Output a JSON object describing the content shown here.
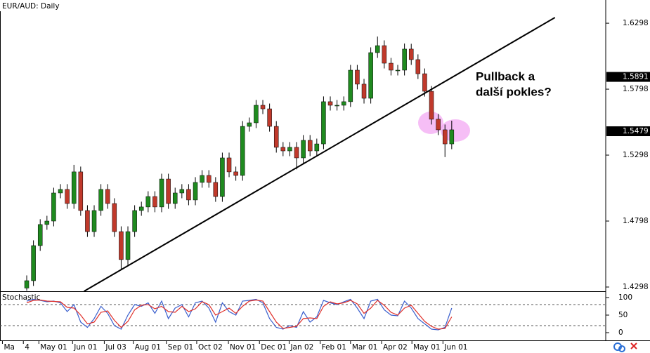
{
  "chart_data": [
    {
      "type": "candlestick",
      "title": "EUR/AUD: Daily",
      "xlim": [
        -3.96,
        85.83
      ],
      "xticks": [
        {
          "value": -3.6,
          "label": "Ma"
        },
        {
          "value": -0.5,
          "label": "4"
        },
        {
          "value": 1.8,
          "label": "May 01"
        },
        {
          "value": 6.8,
          "label": "Jun 01"
        },
        {
          "value": 11.5,
          "label": "Jul 03"
        },
        {
          "value": 15.8,
          "label": "Aug 01"
        },
        {
          "value": 20.7,
          "label": "Sep 01"
        },
        {
          "value": 25.2,
          "label": "Oct 02"
        },
        {
          "value": 29.9,
          "label": "Nov 01"
        },
        {
          "value": 34.5,
          "label": "Dec 01"
        },
        {
          "value": 38.9,
          "label": "Jan 02"
        },
        {
          "value": 43.5,
          "label": "Feb 01"
        },
        {
          "value": 48,
          "label": "Mar 01"
        },
        {
          "value": 52.6,
          "label": "Apr 02"
        },
        {
          "value": 57.1,
          "label": "May 01"
        },
        {
          "value": 61.7,
          "label": "Jun 01"
        }
      ],
      "ylim": [
        1.4266,
        1.6474
      ],
      "yticks": [
        1.6298,
        1.5798,
        1.5298,
        1.4798,
        1.4298
      ],
      "grid": false,
      "up_color": "#1f8a1f",
      "down_color": "#c0392b",
      "open": [
        1.429,
        1.4346,
        1.4612,
        1.4772,
        1.4798,
        1.5011,
        1.5038,
        1.4931,
        1.5171,
        1.4878,
        1.4718,
        1.4878,
        1.5038,
        1.4931,
        1.4718,
        1.4506,
        1.4718,
        1.4878,
        1.4905,
        1.4984,
        1.4905,
        1.5117,
        1.4931,
        1.5011,
        1.5038,
        1.4958,
        1.5091,
        1.5144,
        1.5091,
        1.4984,
        1.5277,
        1.5171,
        1.5144,
        1.5516,
        1.5543,
        1.5676,
        1.5649,
        1.5516,
        1.5357,
        1.533,
        1.5357,
        1.5277,
        1.541,
        1.533,
        1.5383,
        1.5703,
        1.5676,
        1.5676,
        1.5703,
        1.5942,
        1.5836,
        1.5729,
        1.6075,
        1.6128,
        1.5995,
        1.5942,
        1.5942,
        1.6102,
        1.6022,
        1.5915,
        1.5782,
        1.557,
        1.549,
        1.5383
      ],
      "high": [
        1.4386,
        1.4652,
        1.4812,
        1.4838,
        1.5051,
        1.5078,
        1.5078,
        1.5224,
        1.5211,
        1.4918,
        1.4918,
        1.5078,
        1.5078,
        1.4971,
        1.4758,
        1.4758,
        1.4918,
        1.4945,
        1.5024,
        1.5024,
        1.5157,
        1.5157,
        1.5051,
        1.5078,
        1.5078,
        1.5131,
        1.5184,
        1.5184,
        1.5131,
        1.5317,
        1.5317,
        1.5211,
        1.5556,
        1.5583,
        1.5716,
        1.5716,
        1.5689,
        1.5556,
        1.5397,
        1.5397,
        1.5397,
        1.545,
        1.545,
        1.5423,
        1.5743,
        1.5743,
        1.5716,
        1.5743,
        1.5982,
        1.5982,
        1.5876,
        1.6115,
        1.6197,
        1.6168,
        1.6035,
        1.5982,
        1.6144,
        1.6142,
        1.6062,
        1.5955,
        1.5822,
        1.561,
        1.553,
        1.5559
      ],
      "low": [
        1.427,
        1.4306,
        1.4572,
        1.4732,
        1.4758,
        1.4971,
        1.4891,
        1.4891,
        1.4838,
        1.4678,
        1.4678,
        1.4838,
        1.4891,
        1.4678,
        1.4426,
        1.4466,
        1.4678,
        1.4838,
        1.4865,
        1.4865,
        1.4865,
        1.4891,
        1.4891,
        1.4971,
        1.4918,
        1.4918,
        1.5051,
        1.5051,
        1.4944,
        1.4944,
        1.5131,
        1.5104,
        1.5104,
        1.5476,
        1.5503,
        1.5609,
        1.5476,
        1.5317,
        1.529,
        1.529,
        1.519,
        1.5237,
        1.529,
        1.529,
        1.5343,
        1.5636,
        1.5636,
        1.5636,
        1.5663,
        1.5796,
        1.5689,
        1.5689,
        1.6035,
        1.5955,
        1.5902,
        1.5902,
        1.5902,
        1.5982,
        1.5875,
        1.5742,
        1.553,
        1.545,
        1.5283,
        1.5343
      ],
      "close": [
        1.4346,
        1.4612,
        1.4772,
        1.4798,
        1.5011,
        1.5038,
        1.4931,
        1.5171,
        1.4878,
        1.4718,
        1.4878,
        1.5038,
        1.4931,
        1.4718,
        1.4506,
        1.4718,
        1.4878,
        1.4905,
        1.4984,
        1.4905,
        1.5117,
        1.4931,
        1.5011,
        1.5038,
        1.4958,
        1.5091,
        1.5144,
        1.5091,
        1.4984,
        1.5277,
        1.5171,
        1.5144,
        1.5516,
        1.5543,
        1.5676,
        1.5649,
        1.5516,
        1.5357,
        1.533,
        1.5357,
        1.5277,
        1.541,
        1.533,
        1.5383,
        1.5703,
        1.5676,
        1.5676,
        1.5703,
        1.5942,
        1.5836,
        1.5729,
        1.6075,
        1.6128,
        1.5995,
        1.5942,
        1.5942,
        1.6102,
        1.6022,
        1.5915,
        1.5782,
        1.557,
        1.549,
        1.5383,
        1.549
      ],
      "trendline": {
        "x": [
          8.5,
          78.3
        ],
        "y": [
          1.4266,
          1.6341
        ]
      },
      "price_markers": [
        1.5891,
        1.5479
      ],
      "annotation": [
        "Pullback a",
        "další pokles?"
      ]
    },
    {
      "type": "line",
      "title": "Stochastic",
      "xlim": [
        -3.96,
        85.83
      ],
      "ylim": [
        -22,
        116
      ],
      "yticks": [
        100,
        50,
        0
      ],
      "levels": [
        80,
        20
      ],
      "series": [
        {
          "color": "#3a5fcd",
          "values": [
            90,
            95,
            92,
            88,
            90,
            85,
            60,
            80,
            30,
            15,
            40,
            75,
            55,
            20,
            10,
            50,
            80,
            75,
            85,
            55,
            90,
            40,
            70,
            80,
            45,
            85,
            90,
            70,
            30,
            85,
            60,
            50,
            90,
            92,
            95,
            85,
            40,
            15,
            10,
            20,
            15,
            60,
            30,
            45,
            92,
            85,
            80,
            88,
            95,
            70,
            40,
            90,
            95,
            65,
            50,
            48,
            90,
            70,
            40,
            25,
            10,
            8,
            15,
            70
          ]
        },
        {
          "color": "#e0302a",
          "values": [
            85,
            92,
            93,
            90,
            89,
            88,
            72,
            70,
            50,
            25,
            30,
            58,
            62,
            35,
            15,
            32,
            65,
            78,
            80,
            68,
            75,
            60,
            58,
            75,
            60,
            68,
            88,
            80,
            50,
            60,
            70,
            55,
            75,
            90,
            93,
            90,
            60,
            30,
            12,
            15,
            18,
            40,
            42,
            40,
            75,
            88,
            82,
            85,
            92,
            82,
            55,
            70,
            92,
            78,
            58,
            50,
            70,
            78,
            55,
            32,
            18,
            10,
            12,
            45
          ]
        }
      ]
    }
  ]
}
